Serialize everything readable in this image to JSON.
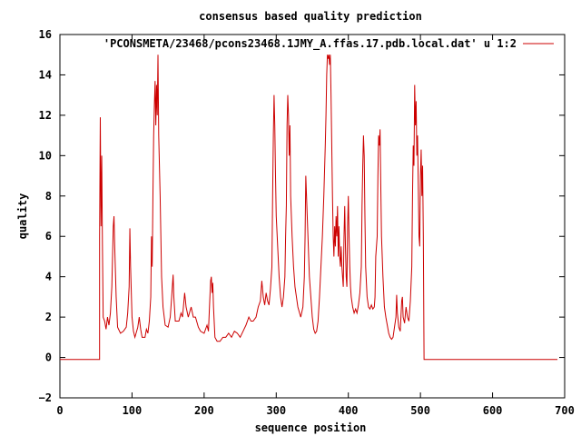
{
  "chart_data": {
    "type": "line",
    "title": "consensus based quality prediction",
    "xlabel": "sequence position",
    "ylabel": "quality",
    "xlim": [
      0,
      700
    ],
    "ylim": [
      -2,
      16
    ],
    "xticks": [
      0,
      100,
      200,
      300,
      400,
      500,
      600,
      700
    ],
    "yticks": [
      -2,
      0,
      2,
      4,
      6,
      8,
      10,
      12,
      14,
      16
    ],
    "grid": false,
    "legend": "top-right",
    "series": [
      {
        "name": "'PCONSMETA/23468/pcons23468.1JMY_A.ffas.17.pdb.local.dat' u 1:2",
        "color": "#cc0000",
        "points": [
          [
            0,
            -0.1
          ],
          [
            55,
            -0.1
          ],
          [
            55,
            6.0
          ],
          [
            56,
            11.9
          ],
          [
            57,
            6.5
          ],
          [
            58,
            10.0
          ],
          [
            59,
            5.5
          ],
          [
            60,
            2.0
          ],
          [
            62,
            1.8
          ],
          [
            64,
            1.4
          ],
          [
            66,
            2.0
          ],
          [
            68,
            1.6
          ],
          [
            70,
            2.2
          ],
          [
            72,
            3.5
          ],
          [
            74,
            6.5
          ],
          [
            75,
            7.0
          ],
          [
            76,
            5.5
          ],
          [
            78,
            3.0
          ],
          [
            80,
            1.5
          ],
          [
            84,
            1.2
          ],
          [
            88,
            1.3
          ],
          [
            92,
            1.5
          ],
          [
            94,
            2.2
          ],
          [
            96,
            3.5
          ],
          [
            97,
            6.4
          ],
          [
            98,
            4.5
          ],
          [
            100,
            2.0
          ],
          [
            102,
            1.3
          ],
          [
            104,
            1.0
          ],
          [
            108,
            1.5
          ],
          [
            110,
            2.0
          ],
          [
            112,
            1.4
          ],
          [
            114,
            1.0
          ],
          [
            118,
            1.0
          ],
          [
            120,
            1.4
          ],
          [
            122,
            1.2
          ],
          [
            124,
            1.8
          ],
          [
            126,
            3.0
          ],
          [
            127,
            6.0
          ],
          [
            128,
            4.5
          ],
          [
            129,
            8.0
          ],
          [
            130,
            11.0
          ],
          [
            131,
            12.5
          ],
          [
            132,
            13.7
          ],
          [
            133,
            11.5
          ],
          [
            134,
            13.5
          ],
          [
            135,
            12.0
          ],
          [
            136,
            15.0
          ],
          [
            137,
            11.0
          ],
          [
            139,
            8.0
          ],
          [
            141,
            4.0
          ],
          [
            143,
            2.5
          ],
          [
            146,
            1.6
          ],
          [
            150,
            1.5
          ],
          [
            153,
            2.0
          ],
          [
            155,
            3.0
          ],
          [
            157,
            4.1
          ],
          [
            158,
            3.0
          ],
          [
            160,
            1.8
          ],
          [
            165,
            1.8
          ],
          [
            168,
            2.2
          ],
          [
            170,
            2.0
          ],
          [
            173,
            3.2
          ],
          [
            175,
            2.5
          ],
          [
            178,
            2.0
          ],
          [
            182,
            2.5
          ],
          [
            185,
            2.0
          ],
          [
            188,
            2.0
          ],
          [
            192,
            1.5
          ],
          [
            195,
            1.3
          ],
          [
            200,
            1.2
          ],
          [
            204,
            1.6
          ],
          [
            206,
            1.3
          ],
          [
            208,
            3.0
          ],
          [
            209,
            3.8
          ],
          [
            210,
            4.0
          ],
          [
            211,
            3.2
          ],
          [
            212,
            3.7
          ],
          [
            213,
            2.5
          ],
          [
            215,
            1.0
          ],
          [
            218,
            0.8
          ],
          [
            222,
            0.8
          ],
          [
            226,
            1.0
          ],
          [
            230,
            1.0
          ],
          [
            234,
            1.2
          ],
          [
            238,
            1.0
          ],
          [
            242,
            1.3
          ],
          [
            246,
            1.2
          ],
          [
            250,
            1.0
          ],
          [
            254,
            1.3
          ],
          [
            258,
            1.6
          ],
          [
            262,
            2.0
          ],
          [
            265,
            1.8
          ],
          [
            268,
            1.8
          ],
          [
            272,
            2.0
          ],
          [
            275,
            2.5
          ],
          [
            278,
            2.8
          ],
          [
            280,
            3.8
          ],
          [
            282,
            3.0
          ],
          [
            284,
            2.6
          ],
          [
            286,
            3.2
          ],
          [
            288,
            2.8
          ],
          [
            290,
            2.6
          ],
          [
            292,
            3.4
          ],
          [
            294,
            4.5
          ],
          [
            295,
            8.0
          ],
          [
            296,
            11.0
          ],
          [
            297,
            13.0
          ],
          [
            298,
            11.5
          ],
          [
            299,
            9.0
          ],
          [
            300,
            7.0
          ],
          [
            302,
            5.5
          ],
          [
            304,
            4.0
          ],
          [
            306,
            3.0
          ],
          [
            308,
            2.5
          ],
          [
            310,
            3.0
          ],
          [
            312,
            4.0
          ],
          [
            313,
            6.0
          ],
          [
            314,
            7.5
          ],
          [
            315,
            11.5
          ],
          [
            316,
            13.0
          ],
          [
            317,
            12.0
          ],
          [
            318,
            10.0
          ],
          [
            319,
            11.5
          ],
          [
            320,
            8.0
          ],
          [
            322,
            6.0
          ],
          [
            324,
            4.5
          ],
          [
            326,
            3.5
          ],
          [
            330,
            2.5
          ],
          [
            334,
            2.0
          ],
          [
            337,
            2.5
          ],
          [
            339,
            4.0
          ],
          [
            340,
            6.0
          ],
          [
            341,
            9.0
          ],
          [
            342,
            8.0
          ],
          [
            344,
            6.0
          ],
          [
            346,
            4.0
          ],
          [
            348,
            3.0
          ],
          [
            350,
            2.0
          ],
          [
            352,
            1.4
          ],
          [
            354,
            1.2
          ],
          [
            356,
            1.3
          ],
          [
            358,
            1.8
          ],
          [
            360,
            3.0
          ],
          [
            362,
            4.5
          ],
          [
            364,
            6.0
          ],
          [
            366,
            8.0
          ],
          [
            368,
            10.5
          ],
          [
            369,
            12.0
          ],
          [
            370,
            14.0
          ],
          [
            371,
            15.0
          ],
          [
            372,
            14.8
          ],
          [
            373,
            15.0
          ],
          [
            374,
            14.5
          ],
          [
            375,
            15.0
          ],
          [
            376,
            13.0
          ],
          [
            377,
            10.5
          ],
          [
            378,
            8.0
          ],
          [
            379,
            6.0
          ],
          [
            380,
            5.0
          ],
          [
            381,
            6.5
          ],
          [
            382,
            5.5
          ],
          [
            383,
            7.0
          ],
          [
            384,
            6.0
          ],
          [
            385,
            7.5
          ],
          [
            386,
            5.0
          ],
          [
            387,
            6.5
          ],
          [
            388,
            5.0
          ],
          [
            389,
            4.5
          ],
          [
            390,
            5.5
          ],
          [
            391,
            4.5
          ],
          [
            392,
            4.0
          ],
          [
            393,
            3.5
          ],
          [
            394,
            6.0
          ],
          [
            395,
            7.5
          ],
          [
            396,
            5.5
          ],
          [
            397,
            4.0
          ],
          [
            398,
            3.5
          ],
          [
            399,
            6.5
          ],
          [
            400,
            8.0
          ],
          [
            401,
            6.0
          ],
          [
            402,
            4.5
          ],
          [
            403,
            3.5
          ],
          [
            404,
            3.0
          ],
          [
            406,
            2.5
          ],
          [
            408,
            2.2
          ],
          [
            410,
            2.4
          ],
          [
            412,
            2.2
          ],
          [
            414,
            2.6
          ],
          [
            416,
            3.2
          ],
          [
            418,
            4.5
          ],
          [
            419,
            7.5
          ],
          [
            420,
            9.5
          ],
          [
            421,
            11.0
          ],
          [
            422,
            10.0
          ],
          [
            423,
            7.0
          ],
          [
            424,
            4.5
          ],
          [
            426,
            3.0
          ],
          [
            428,
            2.5
          ],
          [
            430,
            2.4
          ],
          [
            432,
            2.6
          ],
          [
            434,
            2.4
          ],
          [
            436,
            2.5
          ],
          [
            437,
            3.0
          ],
          [
            438,
            5.0
          ],
          [
            440,
            6.0
          ],
          [
            441,
            9.0
          ],
          [
            442,
            11.0
          ],
          [
            443,
            10.5
          ],
          [
            444,
            11.3
          ],
          [
            445,
            8.5
          ],
          [
            446,
            6.0
          ],
          [
            448,
            4.0
          ],
          [
            450,
            2.5
          ],
          [
            452,
            2.0
          ],
          [
            454,
            1.6
          ],
          [
            456,
            1.2
          ],
          [
            458,
            1.0
          ],
          [
            460,
            0.9
          ],
          [
            462,
            1.0
          ],
          [
            464,
            1.5
          ],
          [
            466,
            2.0
          ],
          [
            467,
            3.1
          ],
          [
            468,
            2.2
          ],
          [
            470,
            1.5
          ],
          [
            472,
            1.3
          ],
          [
            474,
            2.8
          ],
          [
            475,
            3.0
          ],
          [
            476,
            2.0
          ],
          [
            478,
            1.7
          ],
          [
            480,
            2.5
          ],
          [
            482,
            2.0
          ],
          [
            484,
            1.8
          ],
          [
            486,
            2.8
          ],
          [
            488,
            4.5
          ],
          [
            489,
            8.0
          ],
          [
            490,
            10.5
          ],
          [
            491,
            9.5
          ],
          [
            492,
            13.5
          ],
          [
            493,
            11.5
          ],
          [
            494,
            12.7
          ],
          [
            495,
            10.0
          ],
          [
            496,
            11.0
          ],
          [
            497,
            8.5
          ],
          [
            498,
            6.0
          ],
          [
            499,
            5.5
          ],
          [
            500,
            9.0
          ],
          [
            501,
            10.3
          ],
          [
            502,
            8.0
          ],
          [
            503,
            9.5
          ],
          [
            504,
            6.0
          ],
          [
            505,
            -0.1
          ],
          [
            690,
            -0.1
          ]
        ]
      }
    ]
  }
}
